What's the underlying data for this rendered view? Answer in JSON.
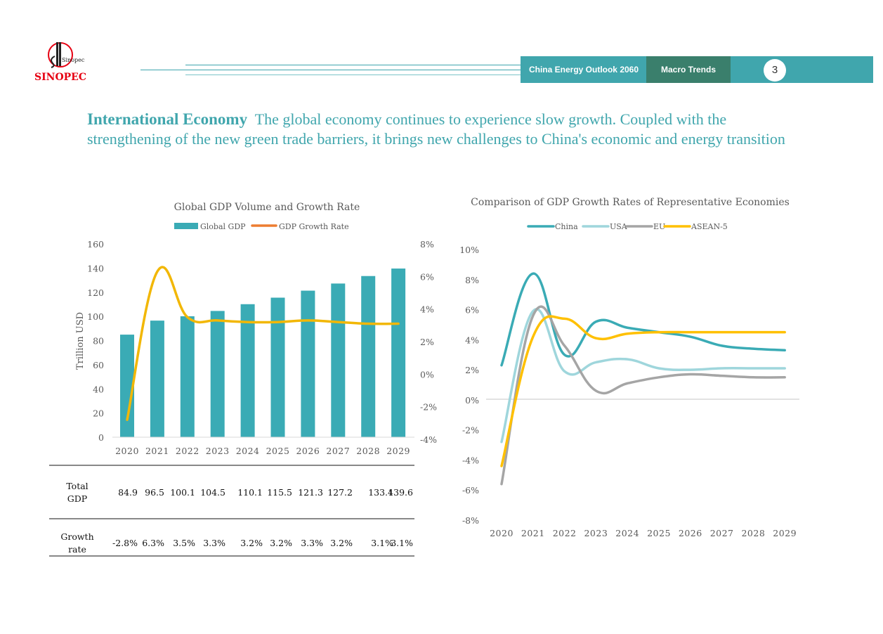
{
  "header": {
    "logo_text": "SINOPEC",
    "logo_mark_text": "Sinopec",
    "banner_title": "China Energy Outlook 2060",
    "banner_section": "Macro Trends",
    "page_number": "3",
    "colors": {
      "teal": "#40a6ad",
      "dark_green": "#3a7f6c",
      "logo_red": "#e60012"
    }
  },
  "headline": {
    "lead": "International Economy",
    "body": "The global economy continues to experience slow growth. Coupled with the strengthening of the new green  trade barriers, it brings new challenges to China's economic and energy transition"
  },
  "chart_data": [
    {
      "type": "bar",
      "title": "Global GDP Volume and Growth Rate",
      "categories": [
        "2020",
        "2021",
        "2022",
        "2023",
        "2024",
        "2025",
        "2026",
        "2027",
        "2028",
        "2029"
      ],
      "series": [
        {
          "name": "Global GDP",
          "type": "bar",
          "axis": "left",
          "color": "#3aabb5",
          "values": [
            84.9,
            96.5,
            100.1,
            104.5,
            110.1,
            115.5,
            121.3,
            127.2,
            133.4,
            139.6
          ]
        },
        {
          "name": "GDP Growth Rate",
          "type": "line",
          "axis": "right",
          "color": "#f2b705",
          "legend_color": "#ed7d31",
          "values": [
            -2.8,
            6.3,
            3.5,
            3.3,
            3.2,
            3.2,
            3.3,
            3.2,
            3.1,
            3.1
          ]
        }
      ],
      "ylabel": "Trillion USD",
      "ylim": [
        0,
        160
      ],
      "yticks": [
        "0",
        "20",
        "40",
        "60",
        "80",
        "100",
        "120",
        "140",
        "160"
      ],
      "y2lim": [
        -4,
        8
      ],
      "y2ticks": [
        "-4%",
        "-2%",
        "0%",
        "2%",
        "4%",
        "6%",
        "8%"
      ],
      "legend": "top",
      "grid": false,
      "table": {
        "rows": [
          {
            "label": "Total GDP",
            "label_lines": [
              "Total",
              "GDP"
            ],
            "values": [
              "84.9",
              "96.5",
              "100.1",
              "104.5",
              "110.1",
              "115.5",
              "121.3",
              "127.2",
              "133.4",
              "139.6"
            ]
          },
          {
            "label": "Growth rate",
            "label_lines": [
              "Growth",
              "rate"
            ],
            "values": [
              "-2.8%",
              "6.3%",
              "3.5%",
              "3.3%",
              "3.2%",
              "3.2%",
              "3.3%",
              "3.2%",
              "3.1%",
              "3.1%"
            ]
          }
        ]
      }
    },
    {
      "type": "line",
      "title": "Comparison of GDP Growth Rates of Representative Economies",
      "x": [
        "2020",
        "2021",
        "2022",
        "2023",
        "2024",
        "2025",
        "2026",
        "2027",
        "2028",
        "2029"
      ],
      "series": [
        {
          "name": "China",
          "color": "#3aabb5",
          "values": [
            2.3,
            8.4,
            3.0,
            5.2,
            4.8,
            4.5,
            4.2,
            3.6,
            3.4,
            3.3
          ]
        },
        {
          "name": "USA",
          "color": "#9fd6dc",
          "values": [
            -2.8,
            5.9,
            1.9,
            2.5,
            2.7,
            2.1,
            2.0,
            2.1,
            2.1,
            2.1
          ]
        },
        {
          "name": "EU",
          "color": "#a5a5a5",
          "values": [
            -5.6,
            5.6,
            3.6,
            0.6,
            1.1,
            1.5,
            1.7,
            1.6,
            1.5,
            1.5
          ]
        },
        {
          "name": "ASEAN-5",
          "color": "#ffc000",
          "values": [
            -4.4,
            4.2,
            5.4,
            4.1,
            4.4,
            4.5,
            4.5,
            4.5,
            4.5,
            4.5
          ]
        }
      ],
      "ylim": [
        -8,
        10
      ],
      "yticks": [
        "-8%",
        "-6%",
        "-4%",
        "-2%",
        "0%",
        "2%",
        "4%",
        "6%",
        "8%",
        "10%"
      ],
      "legend": "top",
      "grid": false,
      "xlabel": "",
      "ylabel": ""
    }
  ]
}
